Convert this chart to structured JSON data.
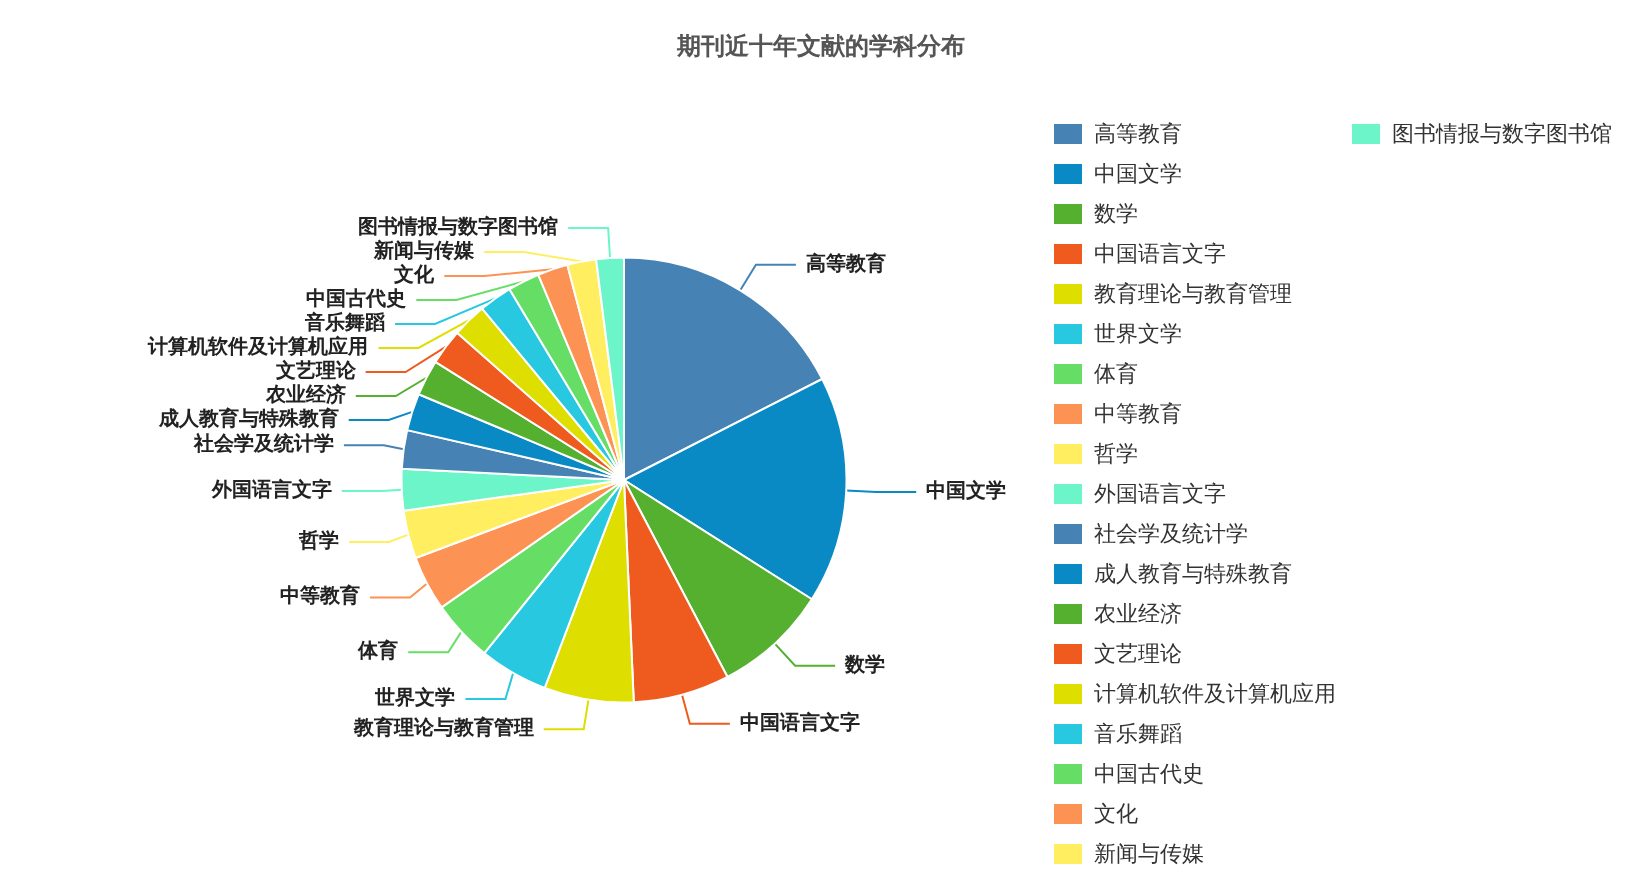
{
  "chart_data": {
    "type": "pie",
    "title": "期刊近十年文献的学科分布",
    "categories": [
      "高等教育",
      "中国文学",
      "数学",
      "中国语言文字",
      "教育理论与教育管理",
      "世界文学",
      "体育",
      "中等教育",
      "哲学",
      "外国语言文字",
      "社会学及统计学",
      "成人教育与特殊教育",
      "农业经济",
      "文艺理论",
      "计算机软件及计算机应用",
      "音乐舞蹈",
      "中国古代史",
      "文化",
      "新闻与传媒",
      "图书情报与数字图书馆"
    ],
    "values": [
      17.5,
      16.5,
      8.3,
      7,
      6.5,
      5,
      4.5,
      4,
      3.5,
      3,
      2.8,
      2.7,
      2.6,
      2.6,
      2.5,
      2.4,
      2.3,
      2.2,
      2.1,
      2.0
    ],
    "colors": [
      "#4682b4",
      "#0a8ac4",
      "#55b030",
      "#ef5a1f",
      "#dede00",
      "#27c8e0",
      "#66de66",
      "#fd9255",
      "#ffee60",
      "#6cf5c9",
      "#4682b4",
      "#0a8ac4",
      "#55b030",
      "#ef5a1f",
      "#dede00",
      "#27c8e0",
      "#66de66",
      "#fd9255",
      "#ffee60",
      "#6cf5c9"
    ],
    "legend": "right"
  }
}
